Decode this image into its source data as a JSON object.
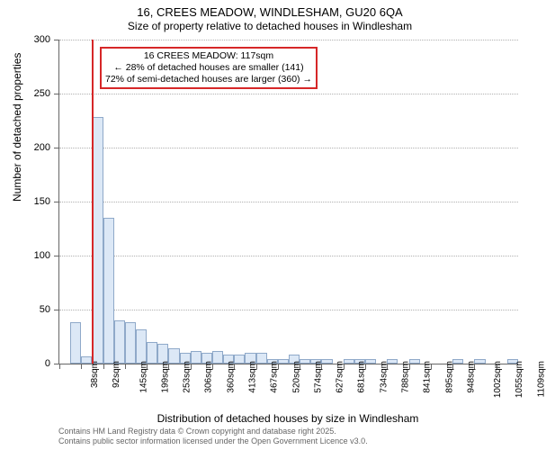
{
  "title_main": "16, CREES MEADOW, WINDLESHAM, GU20 6QA",
  "title_sub": "Size of property relative to detached houses in Windlesham",
  "y_axis_title": "Number of detached properties",
  "x_axis_title": "Distribution of detached houses by size in Windlesham",
  "chart": {
    "type": "bar",
    "background_color": "#ffffff",
    "bar_fill": "#dce8f6",
    "bar_border": "#8fa9c9",
    "grid_color": "#b0b0b0",
    "axis_color": "#666666",
    "marker_color": "#d62728",
    "ylim": [
      0,
      300
    ],
    "ytick_step": 50,
    "y_ticks": [
      0,
      50,
      100,
      150,
      200,
      250,
      300
    ],
    "x_labels": [
      "38sqm",
      "92sqm",
      "145sqm",
      "199sqm",
      "253sqm",
      "306sqm",
      "360sqm",
      "413sqm",
      "467sqm",
      "520sqm",
      "574sqm",
      "627sqm",
      "681sqm",
      "734sqm",
      "788sqm",
      "841sqm",
      "895sqm",
      "948sqm",
      "1002sqm",
      "1055sqm",
      "1109sqm"
    ],
    "x_tick_every": 2,
    "values": [
      0,
      38,
      7,
      228,
      135,
      40,
      38,
      32,
      20,
      18,
      14,
      10,
      12,
      10,
      12,
      8,
      8,
      10,
      10,
      4,
      4,
      8,
      4,
      4,
      4,
      0,
      4,
      4,
      4,
      0,
      4,
      0,
      4,
      0,
      0,
      0,
      4,
      0,
      4,
      0,
      0,
      4
    ],
    "marker_index": 3,
    "label_fontsize": 11,
    "title_fontsize": 13
  },
  "annotation": {
    "line1": "16 CREES MEADOW: 117sqm",
    "line2": "← 28% of detached houses are smaller (141)",
    "line3": "72% of semi-detached houses are larger (360) →"
  },
  "footer": {
    "line1": "Contains HM Land Registry data © Crown copyright and database right 2025.",
    "line2": "Contains public sector information licensed under the Open Government Licence v3.0."
  }
}
